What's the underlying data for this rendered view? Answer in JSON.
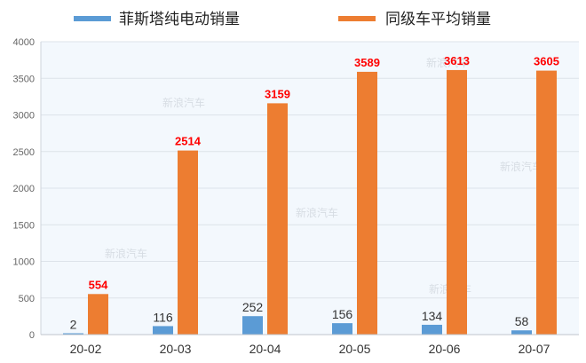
{
  "chart_data": {
    "type": "bar",
    "categories": [
      "20-02",
      "20-03",
      "20-04",
      "20-05",
      "20-06",
      "20-07"
    ],
    "series": [
      {
        "name": "菲斯塔纯电动销量",
        "values": [
          2,
          116,
          252,
          156,
          134,
          58
        ],
        "color": "#5b9bd5"
      },
      {
        "name": "同级车平均销量",
        "values": [
          554,
          2514,
          3159,
          3589,
          3613,
          3605
        ],
        "color": "#ed7d31"
      }
    ],
    "ylim": [
      0,
      4000
    ],
    "yticks": [
      0,
      500,
      1000,
      1500,
      2000,
      2500,
      3000,
      3500,
      4000
    ],
    "grid": true,
    "legend_position": "top",
    "label_colors": {
      "series_0": "#333333",
      "series_1": "#ff0000"
    },
    "watermark": "新浪汽车"
  }
}
